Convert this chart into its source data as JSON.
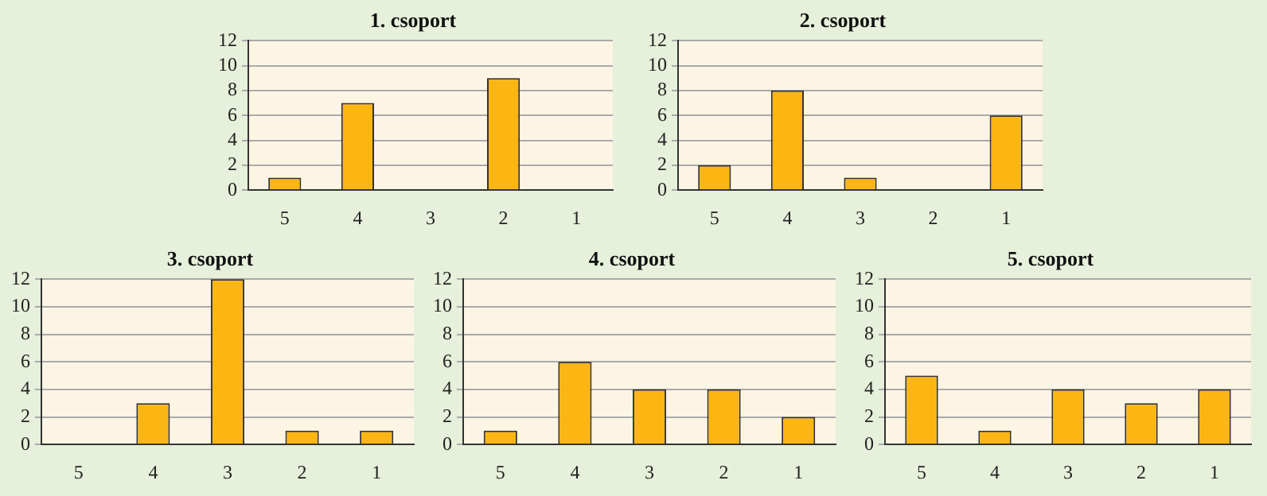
{
  "chart_data": [
    {
      "type": "bar",
      "title": "1. csoport",
      "categories": [
        "5",
        "4",
        "3",
        "2",
        "1"
      ],
      "values": [
        1,
        7,
        0,
        9,
        0
      ],
      "color": "#fbb614",
      "ylim": [
        0,
        12
      ],
      "yticks": [
        0,
        2,
        4,
        6,
        8,
        10,
        12
      ],
      "grid": "y"
    },
    {
      "type": "bar",
      "title": "2. csoport",
      "categories": [
        "5",
        "4",
        "3",
        "2",
        "1"
      ],
      "values": [
        2,
        8,
        1,
        0,
        6
      ],
      "color": "#fbb614",
      "ylim": [
        0,
        12
      ],
      "yticks": [
        0,
        2,
        4,
        6,
        8,
        10,
        12
      ],
      "grid": "y"
    },
    {
      "type": "bar",
      "title": "3. csoport",
      "categories": [
        "5",
        "4",
        "3",
        "2",
        "1"
      ],
      "values": [
        0,
        3,
        12,
        1,
        1
      ],
      "color": "#fbb614",
      "ylim": [
        0,
        12
      ],
      "yticks": [
        0,
        2,
        4,
        6,
        8,
        10,
        12
      ],
      "grid": "y"
    },
    {
      "type": "bar",
      "title": "4. csoport",
      "categories": [
        "5",
        "4",
        "3",
        "2",
        "1"
      ],
      "values": [
        1,
        6,
        4,
        4,
        2
      ],
      "color": "#fbb614",
      "ylim": [
        0,
        12
      ],
      "yticks": [
        0,
        2,
        4,
        6,
        8,
        10,
        12
      ],
      "grid": "y"
    },
    {
      "type": "bar",
      "title": "5. csoport",
      "categories": [
        "5",
        "4",
        "3",
        "2",
        "1"
      ],
      "values": [
        5,
        1,
        4,
        3,
        4
      ],
      "color": "#fbb614",
      "ylim": [
        0,
        12
      ],
      "yticks": [
        0,
        2,
        4,
        6,
        8,
        10,
        12
      ],
      "grid": "y"
    }
  ]
}
